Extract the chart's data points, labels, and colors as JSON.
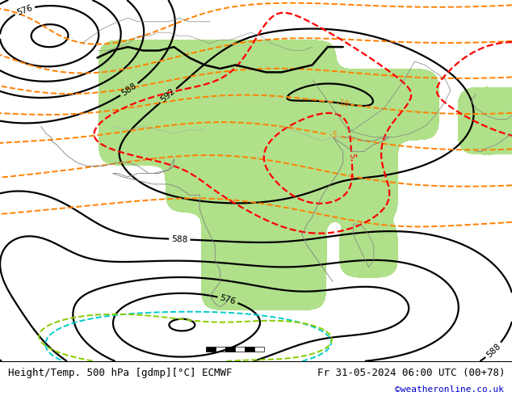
{
  "title_left": "Height/Temp. 500 hPa [gdmp][°C] ECMWF",
  "title_right": "Fr 31-05-2024 06:00 UTC (00+78)",
  "credit": "©weatheronline.co.uk",
  "bg_ocean": "#d8d8d8",
  "bg_land": "#c8c8c8",
  "green_color": "#b0e08a",
  "border_gray": "#909090",
  "border_black": "#000000",
  "black_lw": 1.6,
  "orange_lw": 1.4,
  "red_lw": 1.6,
  "cyan_lw": 1.4,
  "lime_lw": 1.4,
  "label_fs": 7,
  "title_fs": 9,
  "credit_color": "#0000cc",
  "white": "#ffffff"
}
